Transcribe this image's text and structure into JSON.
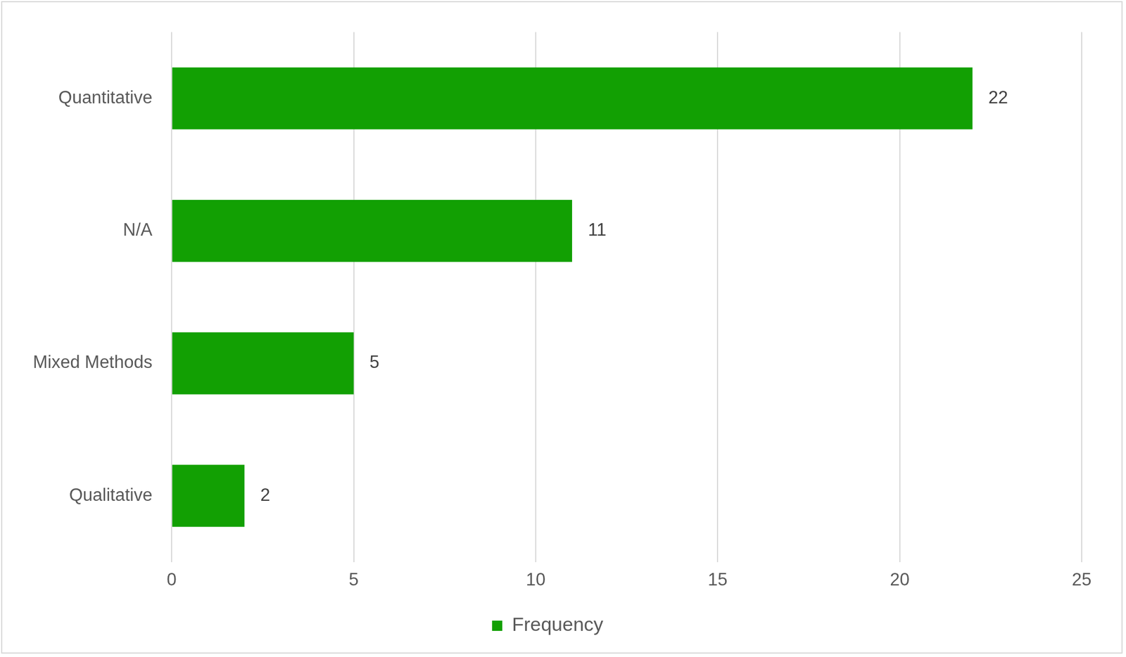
{
  "chart_data": {
    "type": "bar",
    "orientation": "horizontal",
    "categories": [
      "Quantitative",
      "N/A",
      "Mixed Methods",
      "Qualitative"
    ],
    "series": [
      {
        "name": "Frequency",
        "color": "#12a003",
        "values": [
          22,
          11,
          5,
          2
        ]
      }
    ],
    "xlim": [
      0,
      25
    ],
    "xticks": [
      0,
      5,
      10,
      15,
      20,
      25
    ],
    "grid": true,
    "legend": "bottom",
    "data_labels": true
  }
}
